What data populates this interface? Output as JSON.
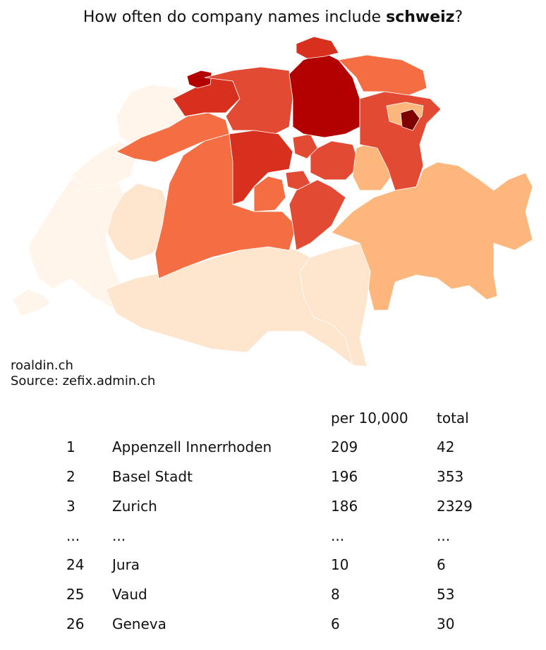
{
  "title": {
    "prefix": "How often do company names include ",
    "keyword": "schweiz",
    "suffix": "?"
  },
  "credits": {
    "line1": "roaldin.ch",
    "line2": "Source: zefix.admin.ch"
  },
  "table": {
    "headers": {
      "per": "per 10,000",
      "total": "total"
    },
    "rows": [
      {
        "rank": "1",
        "name": "Appenzell Innerrhoden",
        "per": "209",
        "total": "42"
      },
      {
        "rank": "2",
        "name": "Basel Stadt",
        "per": "196",
        "total": "353"
      },
      {
        "rank": "3",
        "name": "Zurich",
        "per": "186",
        "total": "2329"
      },
      {
        "rank": "...",
        "name": "...",
        "per": "...",
        "total": "..."
      },
      {
        "rank": "24",
        "name": "Jura",
        "per": "10",
        "total": "6"
      },
      {
        "rank": "25",
        "name": "Vaud",
        "per": "8",
        "total": "53"
      },
      {
        "rank": "26",
        "name": "Geneva",
        "per": "6",
        "total": "30"
      }
    ]
  },
  "map": {
    "colors": {
      "lowest": "#fff5eb",
      "low": "#fee6ce",
      "light": "#fdb77d",
      "mid": "#f46d43",
      "midhigh": "#e34a33",
      "high": "#d7301f",
      "veryhigh": "#b30000",
      "max": "#7f0000"
    }
  }
}
